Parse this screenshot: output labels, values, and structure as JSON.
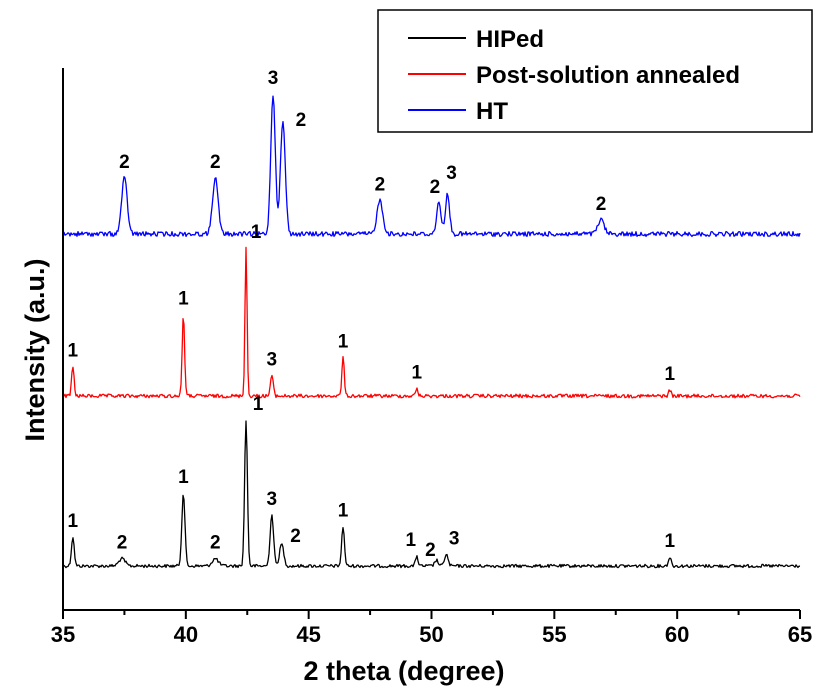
{
  "chart_data": {
    "type": "line",
    "title": "",
    "xlabel": "2 theta (degree)",
    "ylabel": "Intensity (a.u.)",
    "xlim": [
      35,
      65
    ],
    "x_ticks": [
      35,
      40,
      45,
      50,
      55,
      60,
      65
    ],
    "y_ticks_shown": false,
    "grid": false,
    "legend_position": "top-right",
    "series": [
      {
        "name": "HIPed",
        "color": "#000000",
        "peaks": [
          {
            "x": 35.4,
            "intensity": 20,
            "label": "1"
          },
          {
            "x": 37.4,
            "intensity": 5,
            "label": "2"
          },
          {
            "x": 39.9,
            "intensity": 50,
            "label": "1"
          },
          {
            "x": 41.2,
            "intensity": 5,
            "label": "2"
          },
          {
            "x": 42.45,
            "intensity": 100,
            "label": "1"
          },
          {
            "x": 43.5,
            "intensity": 35,
            "label": "3"
          },
          {
            "x": 43.9,
            "intensity": 15,
            "label": "2"
          },
          {
            "x": 46.4,
            "intensity": 27,
            "label": "1"
          },
          {
            "x": 49.4,
            "intensity": 7,
            "label": "1"
          },
          {
            "x": 50.2,
            "intensity": 4,
            "label": "2"
          },
          {
            "x": 50.6,
            "intensity": 8,
            "label": "3"
          },
          {
            "x": 59.7,
            "intensity": 6,
            "label": "1"
          }
        ]
      },
      {
        "name": "Post-solution annealed",
        "color": "#ff0000",
        "peaks": [
          {
            "x": 35.4,
            "intensity": 20,
            "label": "1"
          },
          {
            "x": 39.9,
            "intensity": 55,
            "label": "1"
          },
          {
            "x": 42.45,
            "intensity": 100,
            "label": "1"
          },
          {
            "x": 43.5,
            "intensity": 14,
            "label": "3"
          },
          {
            "x": 46.4,
            "intensity": 26,
            "label": "1"
          },
          {
            "x": 49.4,
            "intensity": 5,
            "label": "1"
          },
          {
            "x": 59.7,
            "intensity": 4,
            "label": "1"
          }
        ]
      },
      {
        "name": "HT",
        "color": "#0000ff",
        "peaks": [
          {
            "x": 37.5,
            "intensity": 40,
            "label": "2"
          },
          {
            "x": 41.2,
            "intensity": 40,
            "label": "2"
          },
          {
            "x": 43.55,
            "intensity": 100,
            "label": "3"
          },
          {
            "x": 43.95,
            "intensity": 80,
            "label": "2"
          },
          {
            "x": 47.9,
            "intensity": 24,
            "label": "2"
          },
          {
            "x": 50.3,
            "intensity": 22,
            "label": "2"
          },
          {
            "x": 50.65,
            "intensity": 28,
            "label": "3"
          },
          {
            "x": 56.9,
            "intensity": 10,
            "label": "2"
          }
        ]
      }
    ]
  }
}
